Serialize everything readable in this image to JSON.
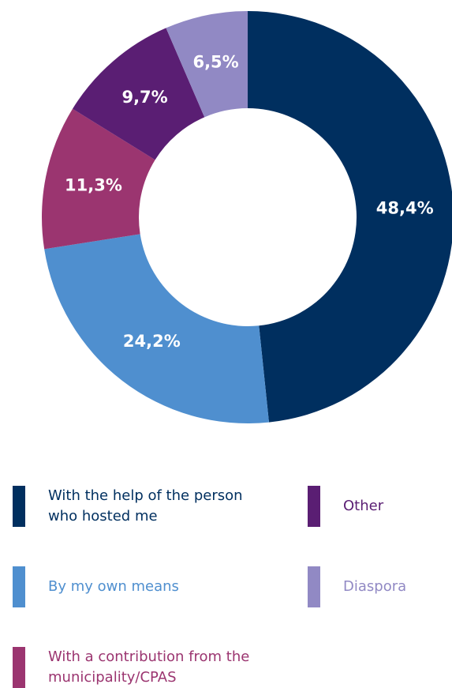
{
  "chart_data": {
    "type": "pie",
    "categories": [
      "With the help of the person who hosted me",
      "By my own means",
      "With a contribution from the municipality/CPAS",
      "Other",
      "Diaspora"
    ],
    "values": [
      48.4,
      24.2,
      11.3,
      9.7,
      6.5
    ],
    "value_labels": [
      "48,4%",
      "24,2%",
      "11,3%",
      "9,7%",
      "6,5%"
    ],
    "colors": [
      "#002f5f",
      "#4f8fcf",
      "#9b3570",
      "#5a1e73",
      "#9189c4"
    ]
  }
}
